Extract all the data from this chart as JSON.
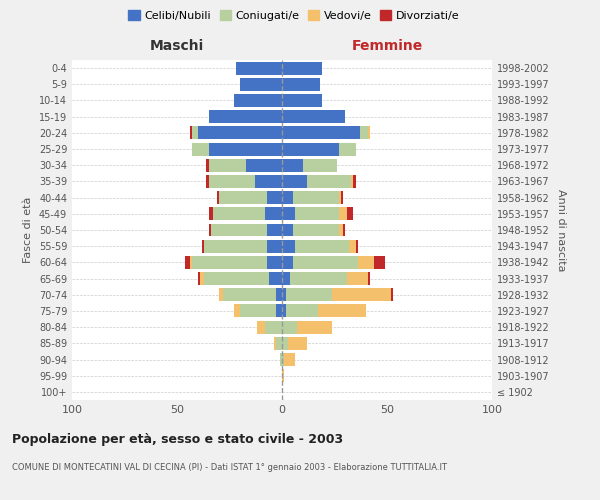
{
  "age_groups": [
    "100+",
    "95-99",
    "90-94",
    "85-89",
    "80-84",
    "75-79",
    "70-74",
    "65-69",
    "60-64",
    "55-59",
    "50-54",
    "45-49",
    "40-44",
    "35-39",
    "30-34",
    "25-29",
    "20-24",
    "15-19",
    "10-14",
    "5-9",
    "0-4"
  ],
  "birth_years": [
    "≤ 1902",
    "1903-1907",
    "1908-1912",
    "1913-1917",
    "1918-1922",
    "1923-1927",
    "1928-1932",
    "1933-1937",
    "1938-1942",
    "1943-1947",
    "1948-1952",
    "1953-1957",
    "1958-1962",
    "1963-1967",
    "1968-1972",
    "1973-1977",
    "1978-1982",
    "1983-1987",
    "1988-1992",
    "1993-1997",
    "1998-2002"
  ],
  "maschi": {
    "celibi": [
      0,
      0,
      0,
      0,
      0,
      3,
      3,
      6,
      7,
      7,
      7,
      8,
      7,
      13,
      17,
      35,
      40,
      35,
      23,
      20,
      22
    ],
    "coniugati": [
      0,
      0,
      1,
      3,
      8,
      17,
      25,
      31,
      36,
      30,
      27,
      25,
      23,
      22,
      18,
      8,
      3,
      0,
      0,
      0,
      0
    ],
    "vedovi": [
      0,
      0,
      0,
      1,
      4,
      3,
      2,
      2,
      1,
      0,
      0,
      0,
      0,
      0,
      0,
      0,
      0,
      0,
      0,
      0,
      0
    ],
    "divorziati": [
      0,
      0,
      0,
      0,
      0,
      0,
      0,
      1,
      2,
      1,
      1,
      2,
      1,
      1,
      1,
      0,
      1,
      0,
      0,
      0,
      0
    ]
  },
  "femmine": {
    "nubili": [
      0,
      0,
      0,
      0,
      0,
      2,
      2,
      4,
      5,
      6,
      5,
      6,
      5,
      12,
      10,
      27,
      37,
      30,
      19,
      18,
      19
    ],
    "coniugate": [
      0,
      0,
      1,
      3,
      7,
      15,
      22,
      27,
      31,
      26,
      22,
      21,
      22,
      21,
      16,
      8,
      4,
      0,
      0,
      0,
      0
    ],
    "vedove": [
      0,
      1,
      5,
      9,
      17,
      23,
      28,
      10,
      8,
      3,
      2,
      4,
      1,
      1,
      0,
      0,
      1,
      0,
      0,
      0,
      0
    ],
    "divorziate": [
      0,
      0,
      0,
      0,
      0,
      0,
      1,
      1,
      5,
      1,
      1,
      3,
      1,
      1,
      0,
      0,
      0,
      0,
      0,
      0,
      0
    ]
  },
  "colors": {
    "celibi_nubili": "#4472c4",
    "coniugati": "#b8cfa0",
    "vedovi": "#f5c06b",
    "divorziati": "#c0282a"
  },
  "xlim": 100,
  "title": "Popolazione per età, sesso e stato civile - 2003",
  "subtitle": "COMUNE DI MONTECATINI VAL DI CECINA (PI) - Dati ISTAT 1° gennaio 2003 - Elaborazione TUTTITALIA.IT",
  "ylabel_left": "Fasce di età",
  "ylabel_right": "Anni di nascita",
  "xlabel_left": "Maschi",
  "xlabel_right": "Femmine",
  "bg_color": "#f0f0f0",
  "plot_bg": "#ffffff"
}
